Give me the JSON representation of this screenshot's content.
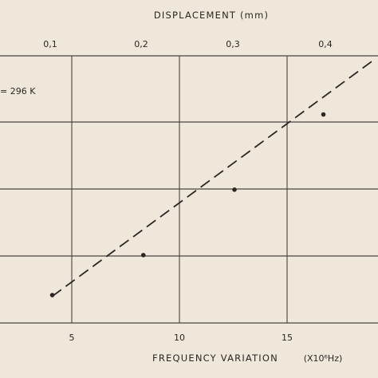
{
  "chart_data": {
    "type": "scatter",
    "x": [
      4.1,
      8.3,
      12.5,
      16.6
    ],
    "y": [
      0.015,
      0.18,
      0.45,
      0.76
    ],
    "fit_line": {
      "x": [
        4.1,
        19.0
      ],
      "y": [
        0.01,
        0.99
      ]
    },
    "xlim": [
      3.5,
      19.5
    ],
    "ylim": [
      -0.1,
      1.1
    ],
    "x_ticks": [
      "5",
      "10",
      "15"
    ],
    "x2_ticks": [
      "0,1",
      "0,2",
      "0,3",
      "0,4"
    ],
    "title": "DISPLACEMENT (mm)",
    "xlabel": "FREQUENCY VARIATION",
    "xlabel_unit": "(X10⁶Hz)",
    "annotation": "= 296 K",
    "grid": true,
    "line_style": "dashed",
    "colors": {
      "ink": "#2b2623",
      "grid": "#4a4440",
      "paper": "#efe7da"
    }
  }
}
